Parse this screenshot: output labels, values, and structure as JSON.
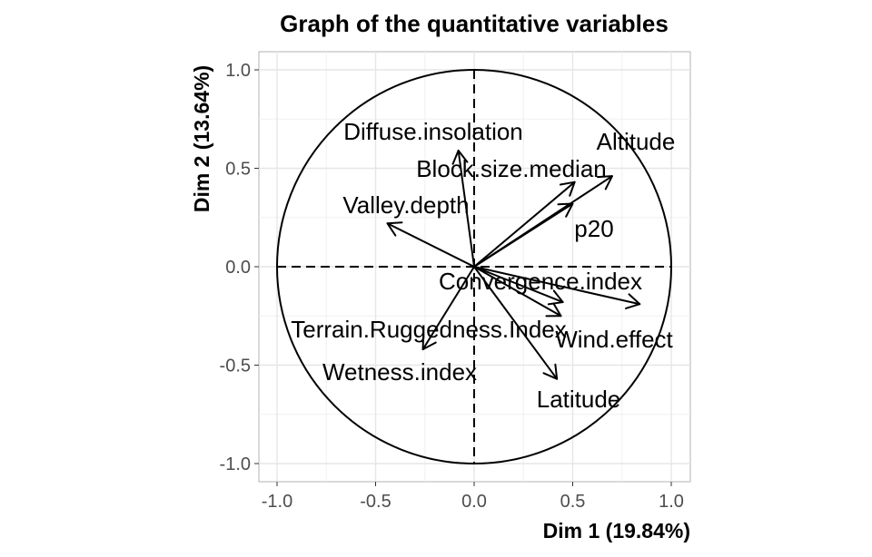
{
  "chart_data": {
    "type": "scatter",
    "subtype": "variable-correlation-circle",
    "title": "Graph of the quantitative variables",
    "xlabel": "Dim 1 (19.84%)",
    "ylabel": "Dim 2 (13.64%)",
    "xlim": [
      -1.1,
      1.1
    ],
    "ylim": [
      -1.1,
      1.1
    ],
    "x_ticks": [
      "-1.0",
      "-0.5",
      "0.0",
      "0.5",
      "1.0"
    ],
    "y_ticks": [
      "-1.0",
      "-0.5",
      "0.0",
      "0.5",
      "1.0"
    ],
    "grid": true,
    "unit_circle": true,
    "reference_lines": "dashed lines at x=0 and y=0",
    "variables": [
      {
        "name": "Diffuse.insolation",
        "x": -0.08,
        "y": 0.59
      },
      {
        "name": "Altitude",
        "x": 0.7,
        "y": 0.46
      },
      {
        "name": "Block.size.median",
        "x": 0.51,
        "y": 0.43
      },
      {
        "name": "Valley.depth",
        "x": -0.44,
        "y": 0.22
      },
      {
        "name": "p20",
        "x": 0.5,
        "y": 0.32
      },
      {
        "name": "Convergence.index",
        "x": 0.45,
        "y": -0.18
      },
      {
        "name": "Wind.effect",
        "x": 0.84,
        "y": -0.19
      },
      {
        "name": "Terrain.Ruggedness.Index",
        "x": 0.44,
        "y": -0.25
      },
      {
        "name": "Wetness.index",
        "x": -0.26,
        "y": -0.42
      },
      {
        "name": "Latitude",
        "x": 0.42,
        "y": -0.57
      }
    ]
  }
}
